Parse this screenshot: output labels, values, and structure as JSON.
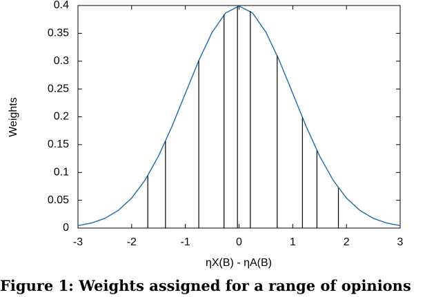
{
  "chart_data": {
    "type": "line",
    "x_label": "ηX(B) - ηA(B)",
    "y_label": "Weights",
    "caption": "Figure 1: Weights assigned for a range of opinions",
    "xlim": [
      -3,
      3
    ],
    "ylim": [
      0,
      0.4
    ],
    "xticks": [
      -3,
      -2,
      -1,
      0,
      1,
      2,
      3
    ],
    "yticks": [
      0,
      0.05,
      0.1,
      0.15,
      0.2,
      0.25,
      0.3,
      0.35,
      0.4
    ],
    "series": [
      {
        "type": "line",
        "color": "#2c6fad",
        "x": [
          -3,
          -2.75,
          -2.5,
          -2.25,
          -2,
          -1.75,
          -1.5,
          -1.25,
          -1,
          -0.75,
          -0.5,
          -0.25,
          0,
          0.25,
          0.5,
          0.75,
          1,
          1.25,
          1.5,
          1.75,
          2,
          2.25,
          2.5,
          2.75,
          3
        ],
        "values": [
          0.0044,
          0.0091,
          0.0175,
          0.0317,
          0.054,
          0.0863,
          0.1295,
          0.1826,
          0.242,
          0.3011,
          0.3521,
          0.3867,
          0.399,
          0.3867,
          0.3521,
          0.3011,
          0.242,
          0.1826,
          0.1295,
          0.0863,
          0.054,
          0.0317,
          0.0175,
          0.0091,
          0.0044
        ]
      },
      {
        "type": "stem",
        "color": "#000000",
        "x": [
          -1.7,
          -1.37,
          -0.75,
          -0.28,
          -0.03,
          0.21,
          0.71,
          1.18,
          1.45,
          1.85
        ],
        "values": [
          0.094,
          0.156,
          0.301,
          0.3836,
          0.3988,
          0.3902,
          0.31,
          0.1989,
          0.1394,
          0.0721
        ]
      }
    ]
  }
}
